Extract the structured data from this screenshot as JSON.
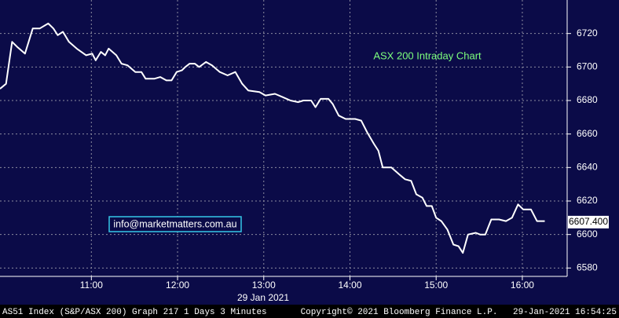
{
  "chart_data": {
    "type": "line",
    "title": "ASX 200 Intraday Chart",
    "x_label": "29 Jan 2021",
    "annotation": "info@marketmatters.com.au",
    "footer": {
      "left": "AS51 Index (S&P/ASX 200) Graph 217 1 Days 3 Minutes",
      "center": "Copyright© 2021 Bloomberg Finance L.P.",
      "right": "29-Jan-2021 16:54:25"
    },
    "color": "#ffffff",
    "x": [
      9.94,
      10.01,
      10.08,
      10.14,
      10.23,
      10.32,
      10.4,
      10.5,
      10.56,
      10.61,
      10.67,
      10.74,
      10.83,
      10.94,
      11.01,
      11.05,
      11.11,
      11.16,
      11.2,
      11.29,
      11.35,
      11.42,
      11.51,
      11.58,
      11.63,
      11.73,
      11.8,
      11.87,
      11.93,
      11.99,
      12.05,
      12.09,
      12.14,
      12.2,
      12.25,
      12.33,
      12.4,
      12.49,
      12.58,
      12.67,
      12.75,
      12.82,
      12.95,
      13.02,
      13.13,
      13.22,
      13.31,
      13.4,
      13.46,
      13.55,
      13.6,
      13.66,
      13.75,
      13.8,
      13.87,
      13.95,
      14.06,
      14.13,
      14.2,
      14.28,
      14.33,
      14.38,
      14.48,
      14.57,
      14.64,
      14.71,
      14.77,
      14.84,
      14.89,
      14.95,
      15.0,
      15.06,
      15.13,
      15.2,
      15.26,
      15.31,
      15.37,
      15.46,
      15.51,
      15.57,
      15.64,
      15.73,
      15.81,
      15.88,
      15.95,
      16.01,
      16.1,
      16.17,
      16.26
    ],
    "values": [
      6687,
      6690,
      6715,
      6712,
      6708,
      6723,
      6723,
      6726,
      6723,
      6719,
      6721,
      6715,
      6711,
      6707,
      6708,
      6704,
      6709,
      6707,
      6711,
      6707,
      6702,
      6701,
      6697,
      6697,
      6693,
      6693,
      6694,
      6692,
      6692,
      6697,
      6698,
      6700,
      6702,
      6702,
      6700,
      6703,
      6701,
      6697,
      6695,
      6697,
      6690,
      6686,
      6685,
      6683,
      6684,
      6682,
      6680,
      6679,
      6680,
      6680,
      6676,
      6681,
      6681,
      6678,
      6671,
      6669,
      6669,
      6668,
      6661,
      6654,
      6650,
      6640,
      6640,
      6636,
      6633,
      6632,
      6624,
      6622,
      6617,
      6617,
      6610,
      6608,
      6603,
      6594,
      6593,
      6589,
      6600,
      6601,
      6600,
      6600,
      6609,
      6609,
      6608,
      6610,
      6618,
      6615,
      6615,
      6608,
      6608
    ],
    "last_value": 6607.4,
    "last_value_label": "6607.400",
    "xlim": [
      9.94,
      16.52
    ],
    "ylim": [
      6575,
      6740
    ],
    "xticks": [
      {
        "value": 11,
        "label": "11:00"
      },
      {
        "value": 12,
        "label": "12:00"
      },
      {
        "value": 13,
        "label": "13:00"
      },
      {
        "value": 14,
        "label": "14:00"
      },
      {
        "value": 15,
        "label": "15:00"
      },
      {
        "value": 16,
        "label": "16:00"
      }
    ],
    "yticks": [
      6580,
      6600,
      6620,
      6640,
      6660,
      6680,
      6700,
      6720
    ],
    "grid": true
  }
}
